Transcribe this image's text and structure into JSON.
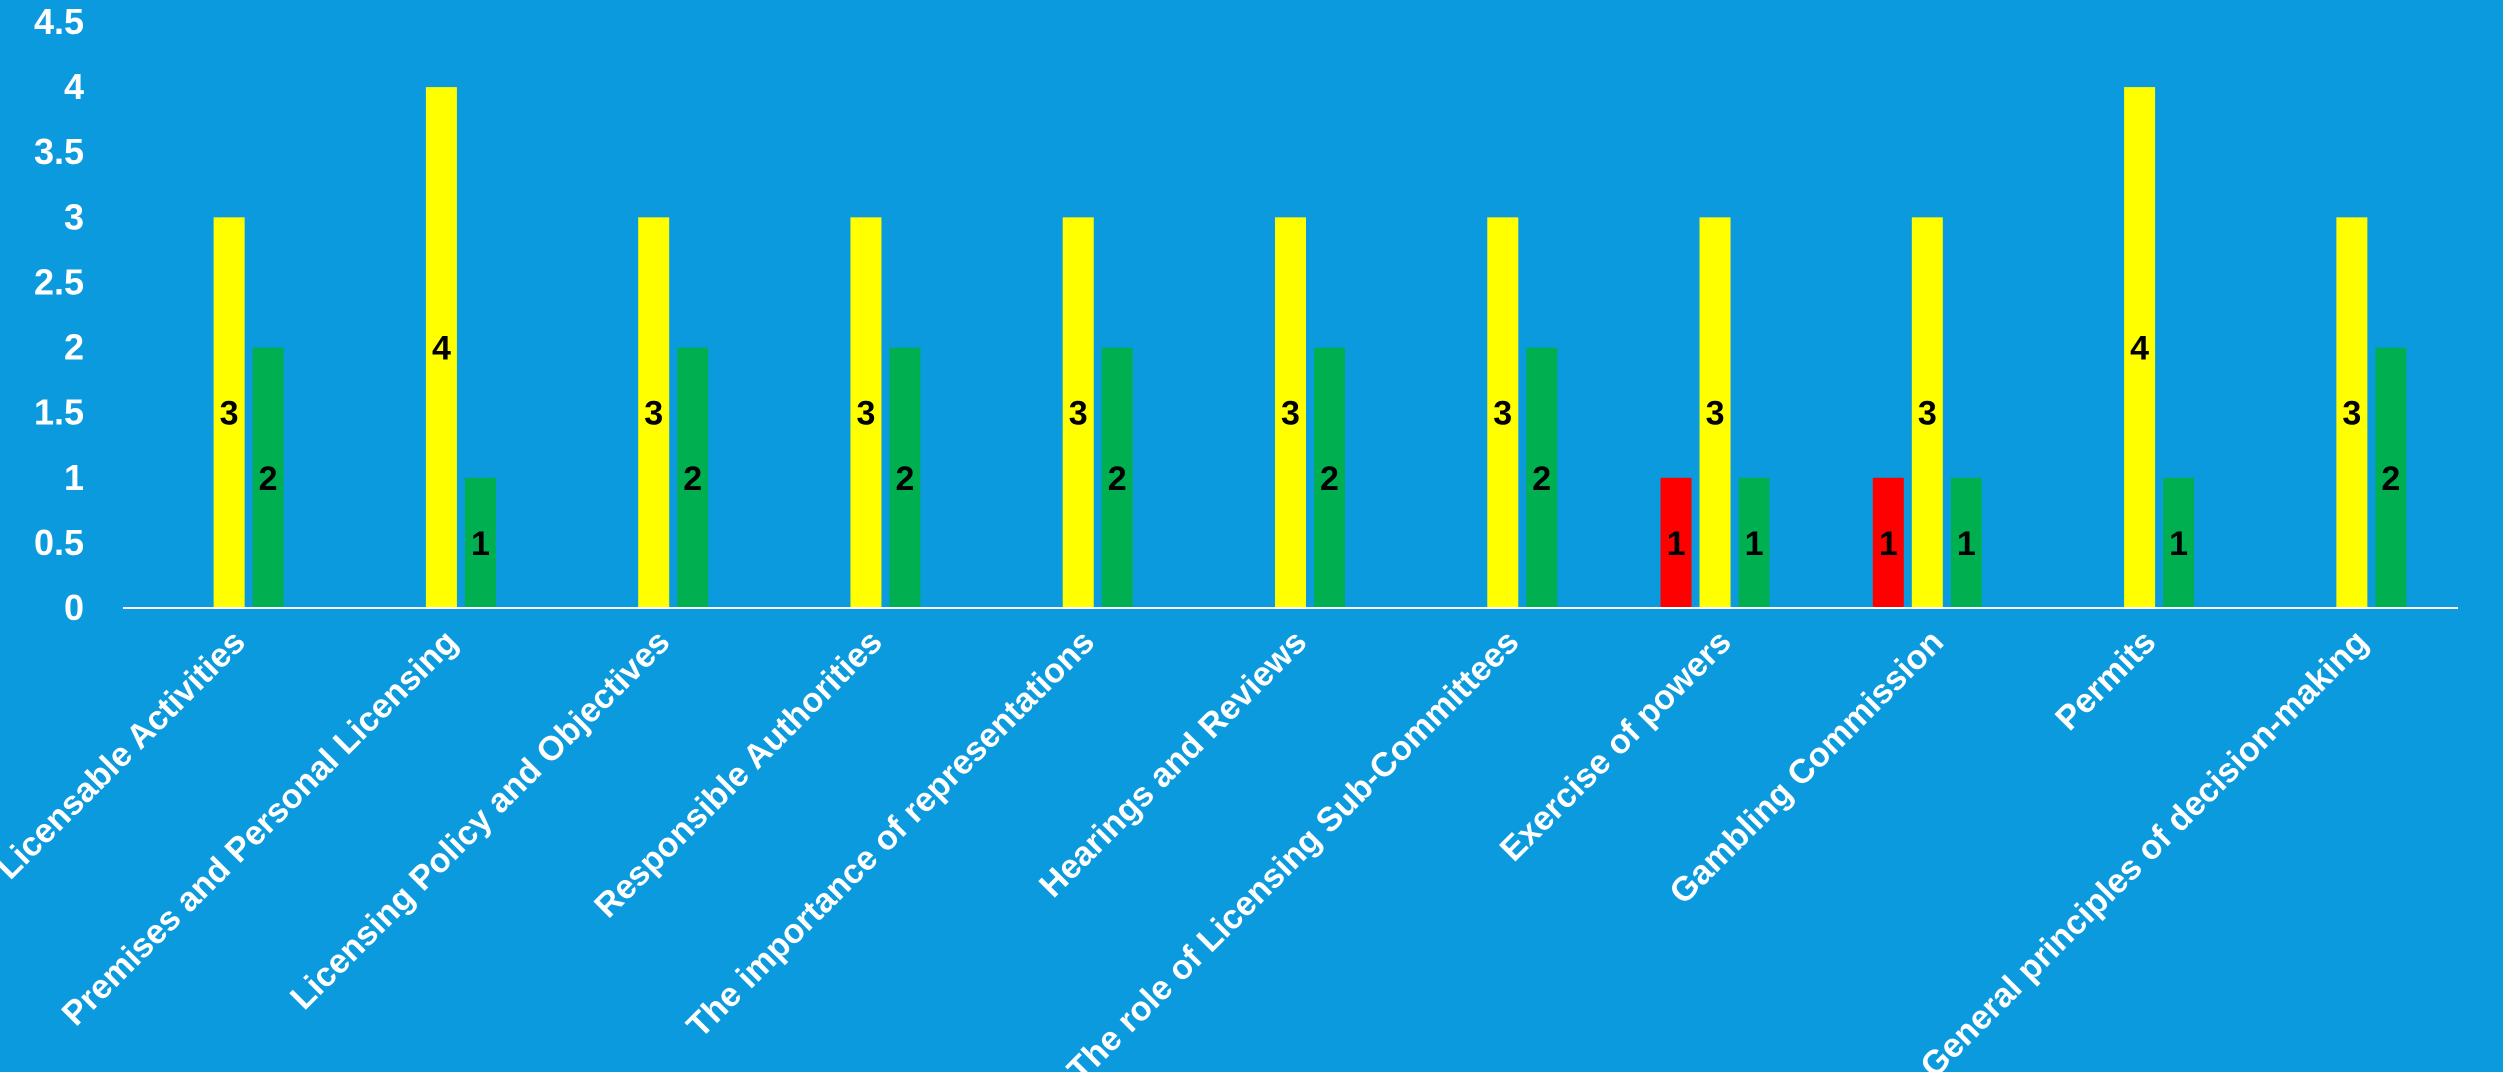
{
  "chart_data": {
    "type": "bar",
    "title": "",
    "xlabel": "",
    "ylabel": "",
    "ylim": [
      0,
      4.5
    ],
    "yticks": [
      "0",
      "0.5",
      "1",
      "1.5",
      "2",
      "2.5",
      "3",
      "3.5",
      "4",
      "4.5"
    ],
    "grid": false,
    "legend": "none",
    "background_color": "#0b9ade",
    "categories": [
      "Licensable Activities",
      "Premises and Personal Licensing",
      "Licensing Policy and Objectives",
      "Responsible Authorities",
      "The importance of representations",
      "Hearings and Reviews",
      "The role of Licensing Sub-Committees",
      "Exercise of powers",
      "Gambling Commission",
      "Permits",
      "General principles of decision-making"
    ],
    "series": [
      {
        "color": "#ff0000",
        "values": [
          0,
          0,
          0,
          0,
          0,
          0,
          0,
          1,
          1,
          0,
          0
        ]
      },
      {
        "color": "#ffff00",
        "values": [
          3,
          4,
          3,
          3,
          3,
          3,
          3,
          3,
          3,
          4,
          3
        ]
      },
      {
        "color": "#00b050",
        "values": [
          2,
          1,
          2,
          2,
          2,
          2,
          2,
          1,
          1,
          1,
          2
        ]
      }
    ]
  }
}
